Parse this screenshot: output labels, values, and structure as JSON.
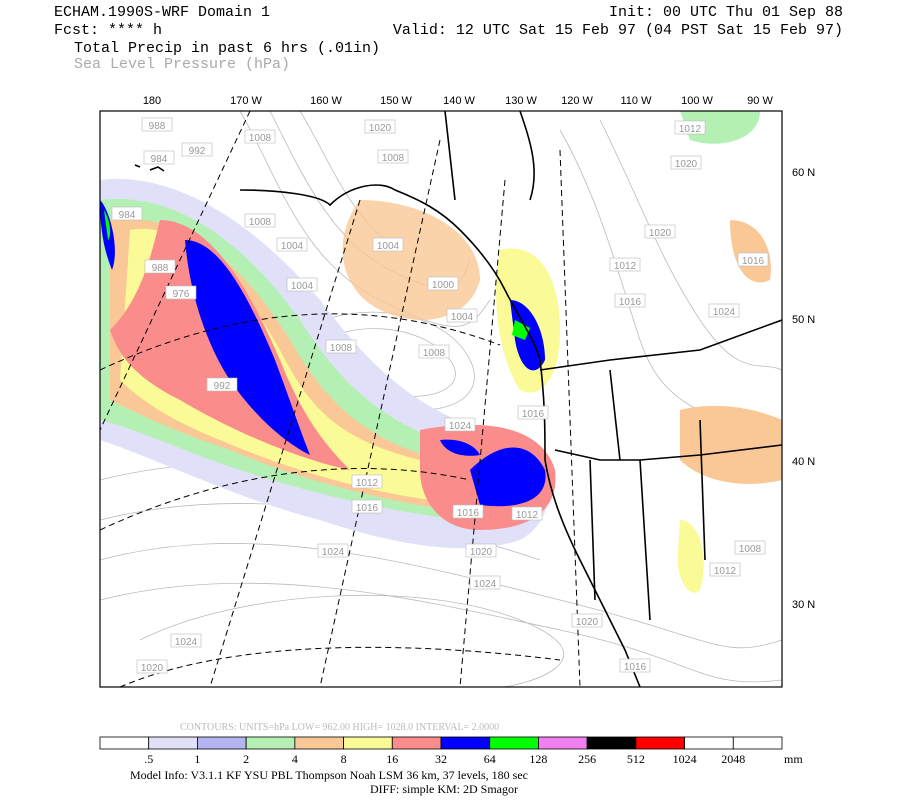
{
  "header": {
    "left": [
      "ECHAM.1990S-WRF Domain 1",
      "Fcst: **** h",
      "Total Precip in past 6 hrs (.01in)",
      "Sea Level Pressure (hPa)"
    ],
    "right": [
      "Init: 00 UTC Thu 01 Sep 88",
      "Valid: 12 UTC Sat 15 Feb 97 (04 PST Sat 15 Feb 97)"
    ]
  },
  "map": {
    "lon_labels": [
      "180",
      "170 W",
      "160 W",
      "150 W",
      "140 W",
      "130 W",
      "120 W",
      "110 W",
      "100 W",
      "90 W"
    ],
    "lat_labels": [
      "60 N",
      "50 N",
      "40 N",
      "30 N"
    ],
    "pressure_labels": [
      "1020",
      "1008",
      "1004",
      "1000",
      "1004",
      "1008",
      "1008",
      "1004",
      "1004",
      "1008",
      "1008",
      "992",
      "984",
      "984",
      "988",
      "976",
      "992",
      "1012",
      "1016",
      "1024",
      "1024",
      "1020",
      "1024",
      "1020",
      "1016",
      "1024",
      "1020",
      "1012",
      "1020",
      "1020",
      "1012",
      "1016",
      "1024",
      "1016",
      "1008",
      "1012",
      "1012",
      "988",
      "1016",
      "1016"
    ]
  },
  "footer": {
    "contours": "CONTOURS:  UNITS=hPa  LOW=  962.00      HIGH=  1028.0      INTERVAL=   2.0000",
    "colorbar": {
      "levels": [
        ".5",
        "1",
        "2",
        "4",
        "8",
        "16",
        "32",
        "64",
        "128",
        "256",
        "512",
        "1024",
        "2048"
      ],
      "colors": [
        "#ffffff",
        "#e0e0f8",
        "#b4b4f0",
        "#b4f0b4",
        "#fac896",
        "#fafa96",
        "#fa8c8c",
        "#0000ff",
        "#00ff00",
        "#f080f0",
        "#000000",
        "#ff0000",
        "#ffffff",
        "#ffffff"
      ],
      "unit": "mm"
    },
    "model_info": "Model Info: V3.1.1    KF      YSU PBL   Thompson     Noah LSM   36 km,    37 levels,   180 sec",
    "diff": "DIFF: simple KM: 2D Smagor"
  }
}
